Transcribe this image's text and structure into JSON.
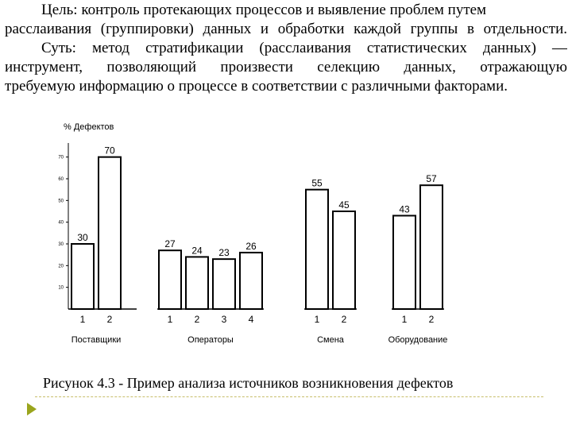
{
  "text_lines": [
    "Цель: контроль протекающих процессов и выявление проблем путем",
    "расслаивания (группировки) данных и обработки каждой группы в отдельности.",
    "Суть: метод стратификации (расслаивания статистических данных) —",
    "инструмент, позволяющий произвести селекцию данных, отражающую",
    "требуемую информацию о процессе в соответствии с различными факторами."
  ],
  "caption": "Рисунок 4.3 - Пример анализа источников возникновения дефектов",
  "chart_data": {
    "type": "bar",
    "ylabel": "% Дефектов",
    "ylim": [
      0,
      75
    ],
    "yticks": [
      10,
      20,
      30,
      40,
      50,
      60,
      70
    ],
    "grid": false,
    "groups": [
      {
        "label": "Поставщики",
        "categories": [
          "1",
          "2"
        ],
        "values": [
          30,
          70
        ]
      },
      {
        "label": "Операторы",
        "categories": [
          "1",
          "2",
          "3",
          "4"
        ],
        "values": [
          27,
          24,
          23,
          26
        ]
      },
      {
        "label": "Смена",
        "categories": [
          "1",
          "2"
        ],
        "values": [
          55,
          45
        ]
      },
      {
        "label": "Оборудование",
        "categories": [
          "1",
          "2"
        ],
        "values": [
          43,
          57
        ]
      }
    ]
  },
  "colors": {
    "bar_stroke": "#000000",
    "bar_fill": "#ffffff",
    "bullet": "#9aa51d"
  },
  "icons": {
    "bullet": "triangle-bullet-icon"
  }
}
